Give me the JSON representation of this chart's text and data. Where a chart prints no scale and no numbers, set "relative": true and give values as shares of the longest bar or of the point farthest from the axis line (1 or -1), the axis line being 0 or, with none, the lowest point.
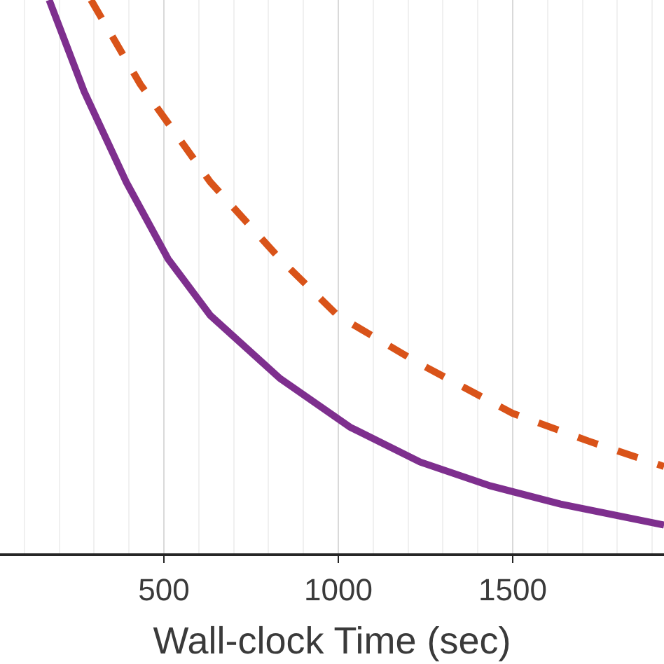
{
  "chart_data": {
    "type": "line",
    "relative": true,
    "xlabel": "Wall-clock Time (sec)",
    "xlim": [
      30,
      1934
    ],
    "xticks": [
      500,
      1000,
      1500
    ],
    "grid": "x",
    "marker": "none",
    "series": [
      {
        "color": "#d95319",
        "line_style": "dashed",
        "x": [
          291,
          432,
          633,
          833,
          998,
          1235,
          1500,
          1717,
          1934
        ],
        "values": [
          1,
          0.848,
          0.671,
          0.532,
          0.43,
          0.342,
          0.253,
          0.203,
          0.157
        ]
      },
      {
        "color": "#7e2f8e",
        "line_style": "solid",
        "x": [
          171,
          271,
          392,
          512,
          633,
          833,
          1034,
          1235,
          1436,
          1637,
          1934
        ],
        "values": [
          1,
          0.835,
          0.671,
          0.532,
          0.43,
          0.316,
          0.228,
          0.165,
          0.122,
          0.089,
          0.051
        ]
      }
    ]
  }
}
